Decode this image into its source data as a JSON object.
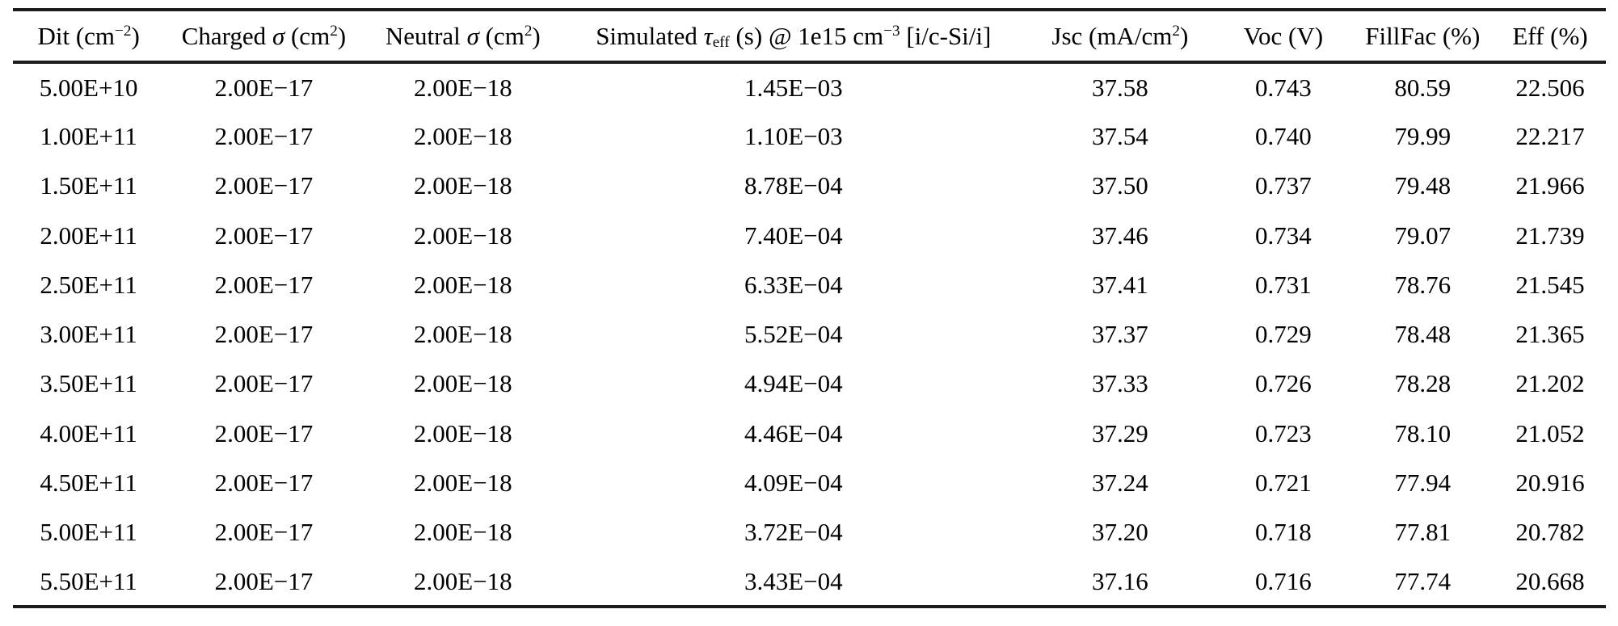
{
  "colors": {
    "text": "#000000",
    "rule": "#1c1c1c",
    "background": "#ffffff"
  },
  "table": {
    "headers": [
      {
        "name": "dit",
        "segments": [
          {
            "t": "Dit (cm"
          },
          {
            "t": "−2",
            "sup": true
          },
          {
            "t": ")"
          }
        ]
      },
      {
        "name": "charged-sigma",
        "segments": [
          {
            "t": "Charged "
          },
          {
            "t": "σ",
            "italic": true
          },
          {
            "t": " (cm"
          },
          {
            "t": "2",
            "sup": true
          },
          {
            "t": ")"
          }
        ]
      },
      {
        "name": "neutral-sigma",
        "segments": [
          {
            "t": "Neutral "
          },
          {
            "t": "σ",
            "italic": true
          },
          {
            "t": " (cm"
          },
          {
            "t": "2",
            "sup": true
          },
          {
            "t": ")"
          }
        ]
      },
      {
        "name": "simulated-tau-eff",
        "segments": [
          {
            "t": "Simulated "
          },
          {
            "t": "τ",
            "italic": true
          },
          {
            "t": "eff",
            "sub": true
          },
          {
            "t": " (s) @ 1e15 cm"
          },
          {
            "t": "−3",
            "sup": true
          },
          {
            "t": " [i/c-Si/i]"
          }
        ]
      },
      {
        "name": "jsc",
        "segments": [
          {
            "t": "Jsc (mA/cm"
          },
          {
            "t": "2",
            "sup": true
          },
          {
            "t": ")"
          }
        ]
      },
      {
        "name": "voc",
        "segments": [
          {
            "t": "Voc (V)"
          }
        ]
      },
      {
        "name": "fillfac",
        "segments": [
          {
            "t": "FillFac (%)"
          }
        ]
      },
      {
        "name": "eff",
        "segments": [
          {
            "t": "Eff (%)"
          }
        ]
      }
    ],
    "rows": [
      [
        "5.00E+10",
        "2.00E−17",
        "2.00E−18",
        "1.45E−03",
        "37.58",
        "0.743",
        "80.59",
        "22.506"
      ],
      [
        "1.00E+11",
        "2.00E−17",
        "2.00E−18",
        "1.10E−03",
        "37.54",
        "0.740",
        "79.99",
        "22.217"
      ],
      [
        "1.50E+11",
        "2.00E−17",
        "2.00E−18",
        "8.78E−04",
        "37.50",
        "0.737",
        "79.48",
        "21.966"
      ],
      [
        "2.00E+11",
        "2.00E−17",
        "2.00E−18",
        "7.40E−04",
        "37.46",
        "0.734",
        "79.07",
        "21.739"
      ],
      [
        "2.50E+11",
        "2.00E−17",
        "2.00E−18",
        "6.33E−04",
        "37.41",
        "0.731",
        "78.76",
        "21.545"
      ],
      [
        "3.00E+11",
        "2.00E−17",
        "2.00E−18",
        "5.52E−04",
        "37.37",
        "0.729",
        "78.48",
        "21.365"
      ],
      [
        "3.50E+11",
        "2.00E−17",
        "2.00E−18",
        "4.94E−04",
        "37.33",
        "0.726",
        "78.28",
        "21.202"
      ],
      [
        "4.00E+11",
        "2.00E−17",
        "2.00E−18",
        "4.46E−04",
        "37.29",
        "0.723",
        "78.10",
        "21.052"
      ],
      [
        "4.50E+11",
        "2.00E−17",
        "2.00E−18",
        "4.09E−04",
        "37.24",
        "0.721",
        "77.94",
        "20.916"
      ],
      [
        "5.00E+11",
        "2.00E−17",
        "2.00E−18",
        "3.72E−04",
        "37.20",
        "0.718",
        "77.81",
        "20.782"
      ],
      [
        "5.50E+11",
        "2.00E−17",
        "2.00E−18",
        "3.43E−04",
        "37.16",
        "0.716",
        "77.74",
        "20.668"
      ]
    ]
  }
}
